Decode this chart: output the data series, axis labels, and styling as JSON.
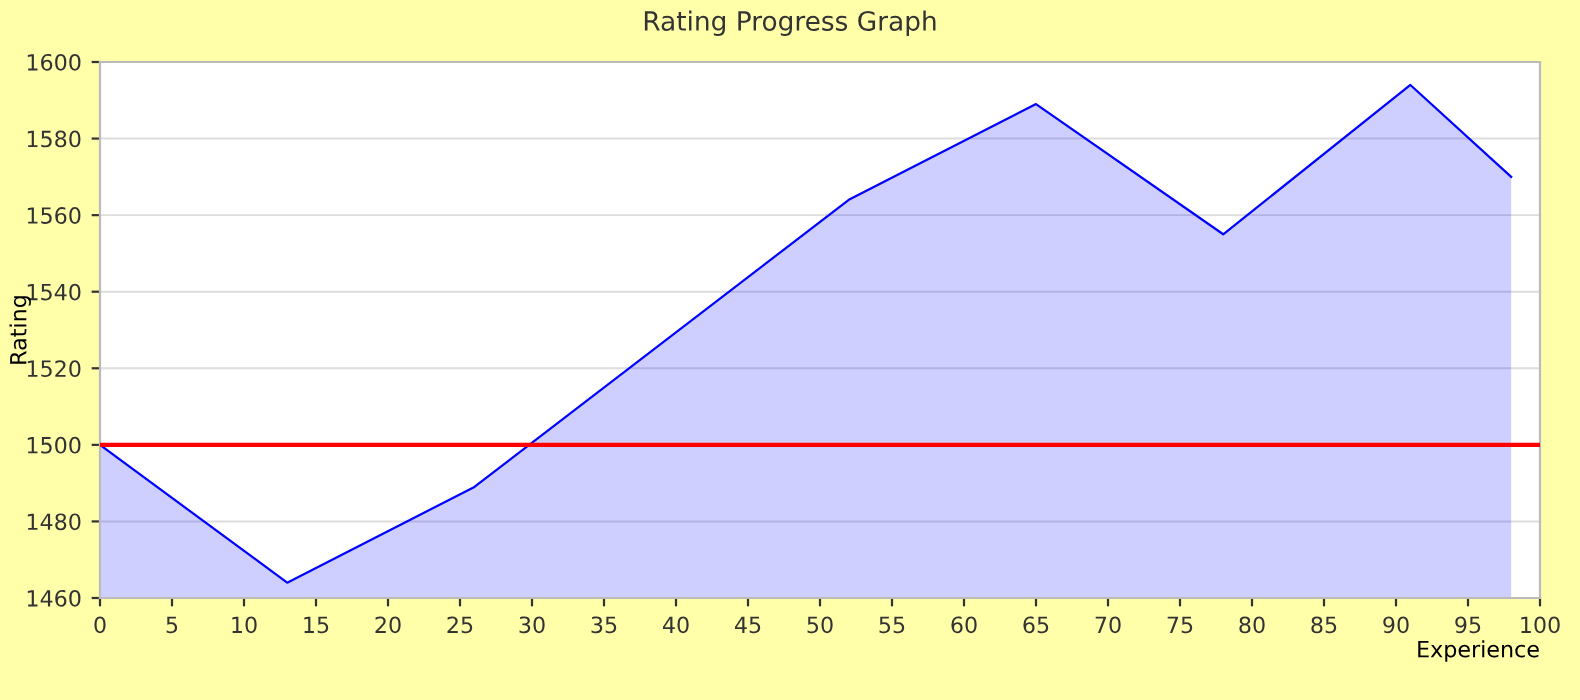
{
  "chart_data": {
    "type": "area",
    "title": "Rating Progress Graph",
    "xlabel": "Experience",
    "ylabel": "Rating",
    "x": [
      0,
      13,
      26,
      52,
      65,
      78,
      91,
      98
    ],
    "series": [
      {
        "color": "#0000ff",
        "values": [
          1500,
          1464,
          1489,
          1564,
          1589,
          1555,
          1594,
          1570
        ]
      }
    ],
    "xlim": [
      0,
      100
    ],
    "xticks": [
      0,
      5,
      10,
      15,
      20,
      25,
      30,
      35,
      40,
      45,
      50,
      55,
      60,
      65,
      70,
      75,
      80,
      85,
      90,
      95,
      100
    ],
    "ylim": [
      1460,
      1600
    ],
    "yticks": [
      1460,
      1480,
      1500,
      1520,
      1540,
      1560,
      1580,
      1600
    ],
    "ref_lines": [
      {
        "axis": "y",
        "value": 1500,
        "color": "#ff0000"
      }
    ],
    "grid": "y"
  }
}
